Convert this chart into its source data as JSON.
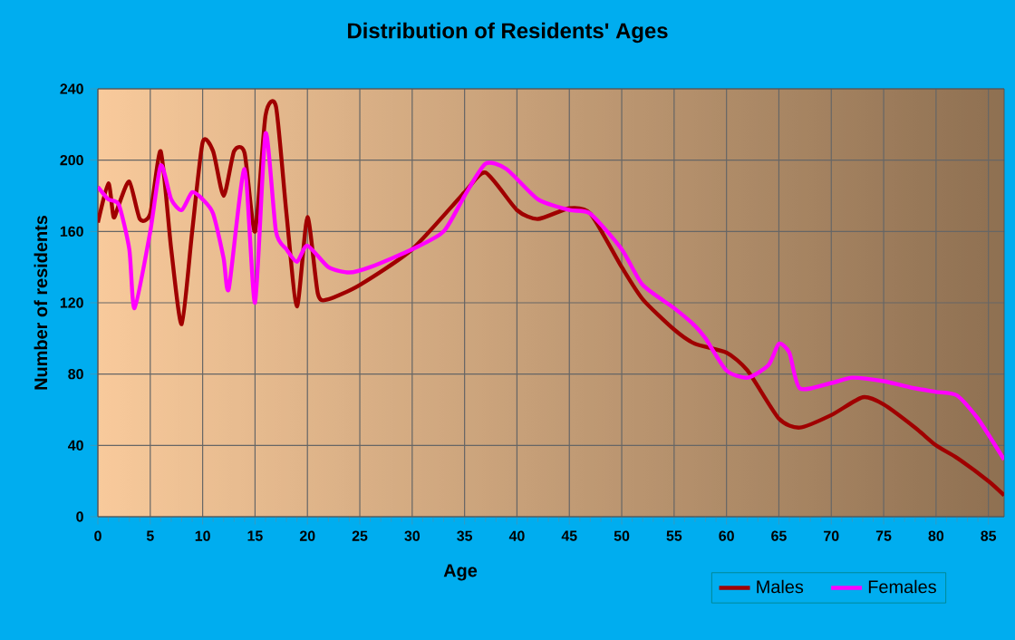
{
  "chart_data": {
    "type": "line",
    "title": "Distribution of Residents' Ages",
    "xlabel": "Age",
    "ylabel": "Number of residents",
    "xlim": [
      0,
      86.5
    ],
    "xticks": [
      0,
      5,
      10,
      15,
      20,
      25,
      30,
      35,
      40,
      45,
      50,
      55,
      60,
      65,
      70,
      75,
      80,
      85
    ],
    "ylim": [
      0,
      240
    ],
    "yticks": [
      0,
      40,
      80,
      120,
      160,
      200,
      240
    ],
    "grid": true,
    "legend": "bottom right",
    "marker": "none",
    "line_style": "solid",
    "series": [
      {
        "name": "Males",
        "color": "#a00000",
        "x": [
          0,
          1,
          1.5,
          2,
          3,
          4,
          5,
          6,
          7,
          8,
          9,
          10,
          11,
          12,
          13,
          14,
          15,
          16,
          17,
          18,
          19,
          20,
          21,
          22,
          25,
          30,
          35,
          37,
          40,
          42,
          45,
          47,
          50,
          52,
          55,
          57,
          60,
          62,
          65,
          67,
          70,
          73,
          75,
          78,
          80,
          82,
          85,
          86.5
        ],
        "values": [
          165,
          187,
          168,
          175,
          188,
          167,
          170,
          205,
          150,
          108,
          160,
          210,
          205,
          180,
          205,
          204,
          160,
          225,
          230,
          170,
          118,
          168,
          125,
          122,
          130,
          150,
          182,
          193,
          172,
          167,
          173,
          170,
          140,
          122,
          105,
          97,
          92,
          82,
          55,
          50,
          57,
          67,
          63,
          50,
          40,
          33,
          20,
          12
        ]
      },
      {
        "name": "Females",
        "color": "#ff00ff",
        "x": [
          0,
          1,
          2,
          3,
          3.5,
          5,
          6,
          7,
          8,
          9,
          10,
          11,
          12,
          12.5,
          14,
          15,
          16,
          17,
          18,
          19,
          20,
          22,
          24,
          26,
          30,
          33,
          35,
          37,
          39,
          42,
          45,
          47,
          50,
          52,
          55,
          57,
          58,
          60,
          62,
          64,
          65,
          66,
          67,
          70,
          72,
          75,
          78,
          80,
          82,
          84,
          86.5
        ],
        "values": [
          185,
          178,
          175,
          150,
          117,
          160,
          197,
          178,
          172,
          182,
          178,
          170,
          145,
          128,
          195,
          120,
          215,
          160,
          150,
          143,
          152,
          140,
          137,
          140,
          150,
          160,
          180,
          198,
          195,
          178,
          172,
          170,
          150,
          130,
          117,
          107,
          100,
          82,
          78,
          85,
          97,
          92,
          72,
          75,
          78,
          76,
          72,
          70,
          68,
          55,
          32
        ]
      }
    ]
  }
}
